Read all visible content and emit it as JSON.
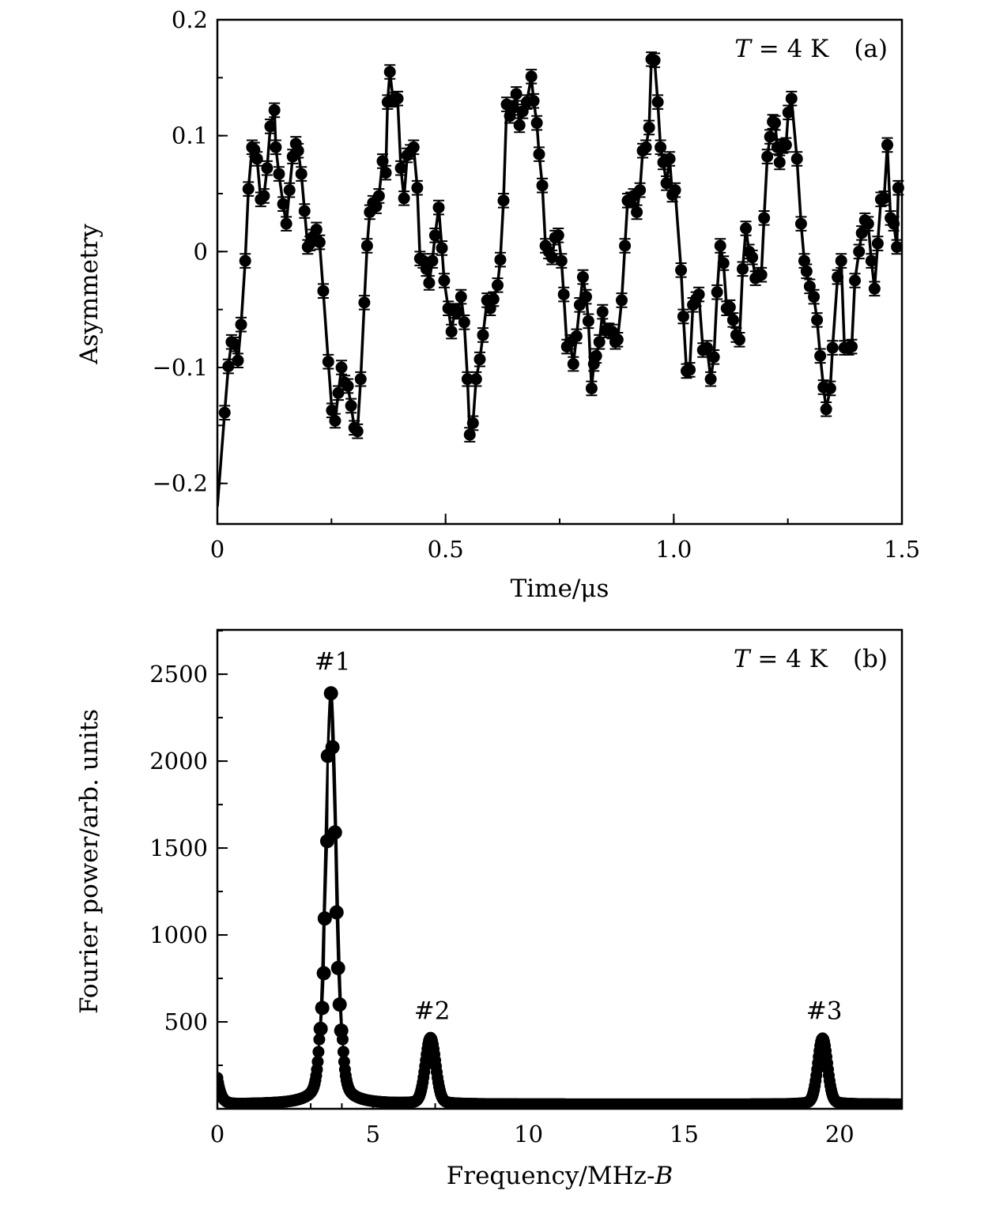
{
  "chart_data": [
    {
      "type": "scatter",
      "panel": "(a)",
      "annotation": {
        "var": "T",
        "eq": " = 4 K",
        "panel": "(a)"
      },
      "xlabel": "Time/μs",
      "ylabel": "Asymmetry",
      "xlim": [
        0,
        1.5
      ],
      "ylim": [
        -0.235,
        0.2
      ],
      "xticks": [
        {
          "v": 0,
          "label": "0"
        },
        {
          "v": 0.5,
          "label": "0.5"
        },
        {
          "v": 1.0,
          "label": "1.0"
        },
        {
          "v": 1.5,
          "label": "1.5"
        }
      ],
      "xminor_step": 0.25,
      "yticks": [
        {
          "v": 0.2,
          "label": "0.2"
        },
        {
          "v": 0.1,
          "label": "0.1"
        },
        {
          "v": 0,
          "label": "0"
        },
        {
          "v": -0.1,
          "label": "−0.1"
        },
        {
          "v": -0.2,
          "label": "−0.2"
        }
      ],
      "yminor_step": 0.05,
      "error": 0.006,
      "fit_start": [
        0,
        -0.22
      ],
      "points": [
        [
          0.016,
          -0.139
        ],
        [
          0.024,
          -0.099
        ],
        [
          0.031,
          -0.078
        ],
        [
          0.038,
          -0.08
        ],
        [
          0.045,
          -0.094
        ],
        [
          0.052,
          -0.063
        ],
        [
          0.061,
          -0.008
        ],
        [
          0.068,
          0.054
        ],
        [
          0.076,
          0.09
        ],
        [
          0.081,
          0.088
        ],
        [
          0.087,
          0.08
        ],
        [
          0.095,
          0.045
        ],
        [
          0.102,
          0.048
        ],
        [
          0.109,
          0.072
        ],
        [
          0.116,
          0.108
        ],
        [
          0.125,
          0.122
        ],
        [
          0.128,
          0.09
        ],
        [
          0.135,
          0.067
        ],
        [
          0.144,
          0.041
        ],
        [
          0.151,
          0.024
        ],
        [
          0.158,
          0.053
        ],
        [
          0.165,
          0.082
        ],
        [
          0.172,
          0.093
        ],
        [
          0.177,
          0.087
        ],
        [
          0.184,
          0.067
        ],
        [
          0.191,
          0.035
        ],
        [
          0.198,
          0.004
        ],
        [
          0.203,
          0.007
        ],
        [
          0.21,
          0.013
        ],
        [
          0.217,
          0.019
        ],
        [
          0.224,
          0.008
        ],
        [
          0.232,
          -0.034
        ],
        [
          0.243,
          -0.095
        ],
        [
          0.251,
          -0.137
        ],
        [
          0.258,
          -0.146
        ],
        [
          0.265,
          -0.122
        ],
        [
          0.272,
          -0.1
        ],
        [
          0.279,
          -0.113
        ],
        [
          0.286,
          -0.116
        ],
        [
          0.293,
          -0.133
        ],
        [
          0.3,
          -0.152
        ],
        [
          0.307,
          -0.155
        ],
        [
          0.314,
          -0.11
        ],
        [
          0.322,
          -0.044
        ],
        [
          0.328,
          0.005
        ],
        [
          0.334,
          0.034
        ],
        [
          0.341,
          0.042
        ],
        [
          0.348,
          0.039
        ],
        [
          0.354,
          0.048
        ],
        [
          0.362,
          0.078
        ],
        [
          0.369,
          0.068
        ],
        [
          0.373,
          0.129
        ],
        [
          0.378,
          0.155
        ],
        [
          0.385,
          0.131
        ],
        [
          0.395,
          0.132
        ],
        [
          0.402,
          0.072
        ],
        [
          0.409,
          0.046
        ],
        [
          0.416,
          0.083
        ],
        [
          0.423,
          0.086
        ],
        [
          0.43,
          0.09
        ],
        [
          0.438,
          0.055
        ],
        [
          0.444,
          -0.006
        ],
        [
          0.451,
          -0.008
        ],
        [
          0.458,
          -0.015
        ],
        [
          0.464,
          -0.027
        ],
        [
          0.471,
          -0.008
        ],
        [
          0.477,
          0.014
        ],
        [
          0.485,
          0.038
        ],
        [
          0.492,
          0.003
        ],
        [
          0.497,
          -0.025
        ],
        [
          0.506,
          -0.049
        ],
        [
          0.513,
          -0.069
        ],
        [
          0.52,
          -0.051
        ],
        [
          0.527,
          -0.052
        ],
        [
          0.534,
          -0.039
        ],
        [
          0.541,
          -0.061
        ],
        [
          0.548,
          -0.11
        ],
        [
          0.553,
          -0.158
        ],
        [
          0.56,
          -0.148
        ],
        [
          0.567,
          -0.11
        ],
        [
          0.575,
          -0.093
        ],
        [
          0.582,
          -0.072
        ],
        [
          0.591,
          -0.042
        ],
        [
          0.598,
          -0.049
        ],
        [
          0.605,
          -0.041
        ],
        [
          0.614,
          -0.029
        ],
        [
          0.62,
          -0.007
        ],
        [
          0.627,
          0.044
        ],
        [
          0.634,
          0.127
        ],
        [
          0.641,
          0.117
        ],
        [
          0.648,
          0.124
        ],
        [
          0.655,
          0.136
        ],
        [
          0.662,
          0.109
        ],
        [
          0.669,
          0.121
        ],
        [
          0.678,
          0.129
        ],
        [
          0.688,
          0.151
        ],
        [
          0.693,
          0.13
        ],
        [
          0.7,
          0.111
        ],
        [
          0.705,
          0.084
        ],
        [
          0.712,
          0.057
        ],
        [
          0.719,
          0.005
        ],
        [
          0.726,
          0.0
        ],
        [
          0.733,
          -0.005
        ],
        [
          0.74,
          0.012
        ],
        [
          0.747,
          0.014
        ],
        [
          0.754,
          -0.008
        ],
        [
          0.759,
          -0.037
        ],
        [
          0.766,
          -0.082
        ],
        [
          0.773,
          -0.078
        ],
        [
          0.78,
          -0.097
        ],
        [
          0.787,
          -0.073
        ],
        [
          0.794,
          -0.046
        ],
        [
          0.801,
          -0.022
        ],
        [
          0.808,
          -0.039
        ],
        [
          0.813,
          -0.06
        ],
        [
          0.82,
          -0.118
        ],
        [
          0.825,
          -0.097
        ],
        [
          0.83,
          -0.09
        ],
        [
          0.837,
          -0.078
        ],
        [
          0.844,
          -0.052
        ],
        [
          0.851,
          -0.068
        ],
        [
          0.858,
          -0.068
        ],
        [
          0.865,
          -0.069
        ],
        [
          0.872,
          -0.078
        ],
        [
          0.877,
          -0.076
        ],
        [
          0.886,
          -0.042
        ],
        [
          0.893,
          0.005
        ],
        [
          0.899,
          0.044
        ],
        [
          0.906,
          0.045
        ],
        [
          0.912,
          0.048
        ],
        [
          0.919,
          0.034
        ],
        [
          0.926,
          0.053
        ],
        [
          0.932,
          0.087
        ],
        [
          0.939,
          0.09
        ],
        [
          0.946,
          0.107
        ],
        [
          0.951,
          0.166
        ],
        [
          0.958,
          0.165
        ],
        [
          0.965,
          0.129
        ],
        [
          0.971,
          0.09
        ],
        [
          0.977,
          0.077
        ],
        [
          0.984,
          0.059
        ],
        [
          0.991,
          0.08
        ],
        [
          0.997,
          0.049
        ],
        [
          1.003,
          0.053
        ],
        [
          1.016,
          -0.016
        ],
        [
          1.021,
          -0.056
        ],
        [
          1.028,
          -0.103
        ],
        [
          1.035,
          -0.102
        ],
        [
          1.042,
          -0.046
        ],
        [
          1.049,
          -0.041
        ],
        [
          1.055,
          -0.037
        ],
        [
          1.064,
          -0.085
        ],
        [
          1.073,
          -0.083
        ],
        [
          1.081,
          -0.11
        ],
        [
          1.088,
          -0.091
        ],
        [
          1.095,
          -0.035
        ],
        [
          1.102,
          0.005
        ],
        [
          1.109,
          -0.01
        ],
        [
          1.116,
          -0.049
        ],
        [
          1.123,
          -0.048
        ],
        [
          1.13,
          -0.059
        ],
        [
          1.137,
          -0.072
        ],
        [
          1.144,
          -0.076
        ],
        [
          1.151,
          -0.015
        ],
        [
          1.158,
          0.02
        ],
        [
          1.165,
          0.0
        ],
        [
          1.172,
          -0.005
        ],
        [
          1.179,
          -0.023
        ],
        [
          1.185,
          -0.02
        ],
        [
          1.192,
          -0.02
        ],
        [
          1.198,
          0.029
        ],
        [
          1.205,
          0.082
        ],
        [
          1.211,
          0.099
        ],
        [
          1.217,
          0.112
        ],
        [
          1.222,
          0.111
        ],
        [
          1.227,
          0.09
        ],
        [
          1.232,
          0.077
        ],
        [
          1.239,
          0.091
        ],
        [
          1.246,
          0.092
        ],
        [
          1.251,
          0.12
        ],
        [
          1.258,
          0.132
        ],
        [
          1.27,
          0.08
        ],
        [
          1.279,
          0.024
        ],
        [
          1.286,
          -0.008
        ],
        [
          1.291,
          -0.017
        ],
        [
          1.298,
          -0.03
        ],
        [
          1.307,
          -0.039
        ],
        [
          1.314,
          -0.059
        ],
        [
          1.321,
          -0.09
        ],
        [
          1.328,
          -0.117
        ],
        [
          1.334,
          -0.136
        ],
        [
          1.343,
          -0.118
        ],
        [
          1.348,
          -0.083
        ],
        [
          1.359,
          -0.022
        ],
        [
          1.367,
          -0.008
        ],
        [
          1.374,
          -0.083
        ],
        [
          1.383,
          -0.083
        ],
        [
          1.39,
          -0.082
        ],
        [
          1.397,
          -0.025
        ],
        [
          1.406,
          0.0
        ],
        [
          1.412,
          0.016
        ],
        [
          1.419,
          0.027
        ],
        [
          1.426,
          0.024
        ],
        [
          1.433,
          -0.008
        ],
        [
          1.44,
          -0.032
        ],
        [
          1.447,
          0.007
        ],
        [
          1.454,
          0.045
        ],
        [
          1.461,
          0.046
        ],
        [
          1.468,
          0.092
        ],
        [
          1.475,
          0.029
        ],
        [
          1.482,
          0.024
        ],
        [
          1.489,
          0.004
        ],
        [
          1.492,
          0.055
        ]
      ]
    },
    {
      "type": "line",
      "panel": "(b)",
      "annotation": {
        "var": "T",
        "eq": " = 4 K",
        "panel": "(b)"
      },
      "xlabel_main": "Frequency/MHz-",
      "xlabel_var": "B",
      "ylabel": "Fourier power/arb. units",
      "xlim": [
        0,
        22
      ],
      "ylim": [
        0,
        2755
      ],
      "xticks": [
        {
          "v": 0,
          "label": "0"
        },
        {
          "v": 5,
          "label": "5"
        },
        {
          "v": 10,
          "label": "10"
        },
        {
          "v": 15,
          "label": "15"
        },
        {
          "v": 20,
          "label": "20"
        }
      ],
      "xminor_step": 1,
      "yticks": [
        {
          "v": 500,
          "label": "500"
        },
        {
          "v": 1000,
          "label": "1000"
        },
        {
          "v": 1500,
          "label": "1500"
        },
        {
          "v": 2000,
          "label": "2000"
        },
        {
          "v": 2500,
          "label": "2500"
        }
      ],
      "yminor_step": 250,
      "baseline": 25,
      "x_step": 0.025,
      "low_freq": {
        "amplitude": 150,
        "decay": 0.12
      },
      "peaks": [
        {
          "label": "#1",
          "frequency": 3.65,
          "amplitude": 2390,
          "sigma": 0.18,
          "wing_fraction": 0.12,
          "wing_width": 0.35
        },
        {
          "label": "#2",
          "frequency": 6.85,
          "amplitude": 380,
          "sigma": 0.16,
          "wing_fraction": 0.1,
          "wing_width": 0.3
        },
        {
          "label": "#3",
          "frequency": 19.45,
          "amplitude": 380,
          "sigma": 0.15,
          "wing_fraction": 0.1,
          "wing_width": 0.3
        }
      ],
      "main_peak_points": [
        [
          3.32,
          460
        ],
        [
          3.37,
          580
        ],
        [
          3.42,
          780
        ],
        [
          3.45,
          1095
        ],
        [
          3.53,
          1540
        ],
        [
          3.55,
          2030
        ],
        [
          3.65,
          2390
        ],
        [
          3.7,
          2080
        ],
        [
          3.78,
          1590
        ],
        [
          3.83,
          1130
        ],
        [
          3.88,
          810
        ],
        [
          3.93,
          600
        ],
        [
          3.98,
          450
        ]
      ]
    }
  ]
}
